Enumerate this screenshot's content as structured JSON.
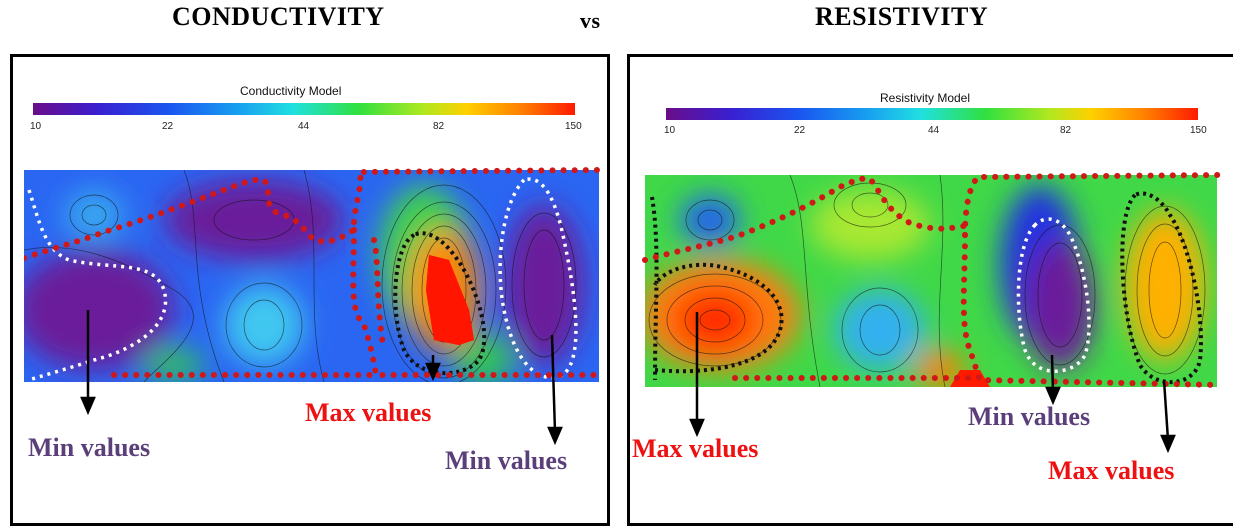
{
  "titles": {
    "left": "CONDUCTIVITY",
    "vs": "vs",
    "right": "RESISTIVITY"
  },
  "left_panel": {
    "colorbar_title": "Conductivity Model",
    "ticks": [
      "10",
      "22",
      "44",
      "82",
      "150"
    ],
    "labels": {
      "min_left": "Min values",
      "max_center": "Max values",
      "min_right": "Min values"
    }
  },
  "right_panel": {
    "colorbar_title": "Resistivity Model",
    "ticks": [
      "10",
      "22",
      "44",
      "82",
      "150"
    ],
    "labels": {
      "max_left": "Max values",
      "min_center": "Min values",
      "max_right": "Max values"
    }
  },
  "colors": {
    "min_label": "#5b3f7a",
    "max_label": "#ee1111",
    "dots": "#d01818"
  }
}
